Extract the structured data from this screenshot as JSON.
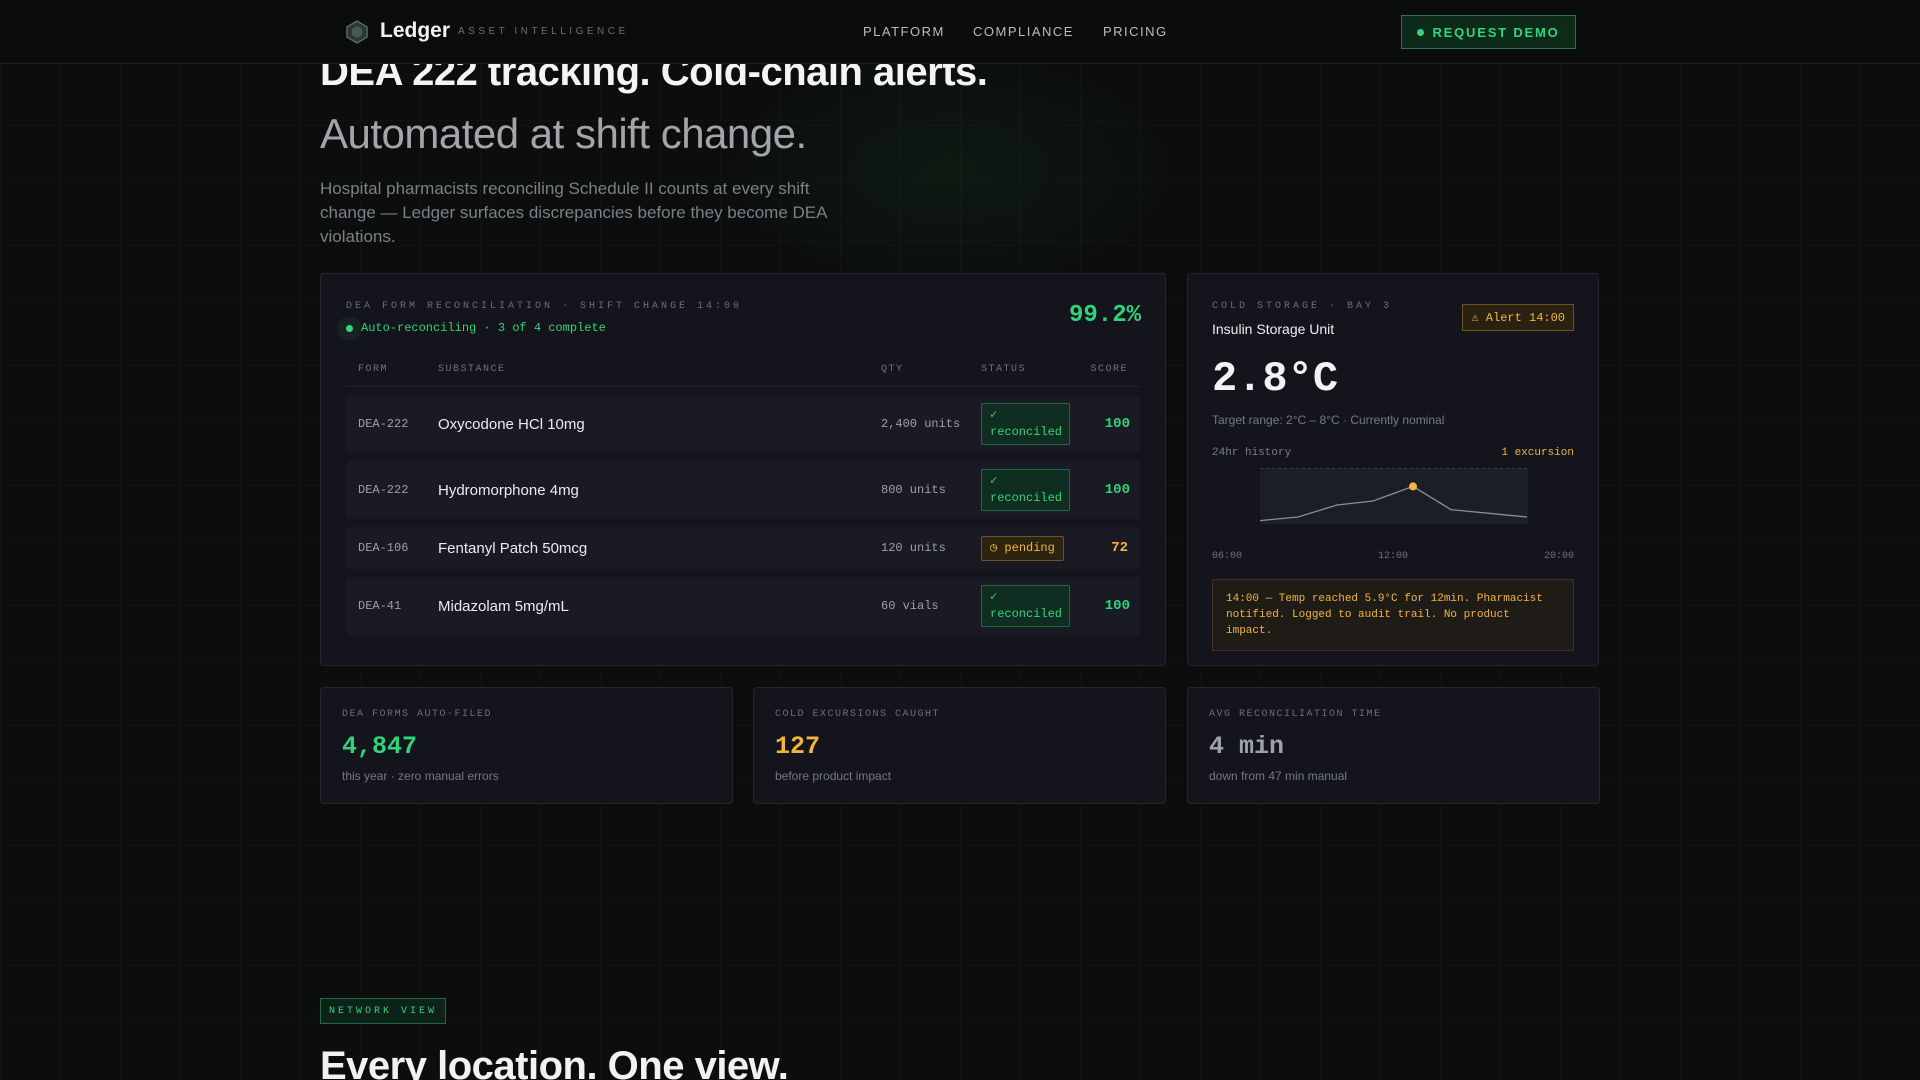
{
  "nav": {
    "brand": "Ledger",
    "tagline": "ASSET INTELLIGENCE",
    "links": [
      "PLATFORM",
      "COMPLIANCE",
      "PRICING"
    ],
    "cta": "REQUEST DEMO"
  },
  "hero": {
    "headline": "DEA 222 tracking. Cold-chain alerts.",
    "subheadline": "Automated at shift change.",
    "description": "Hospital pharmacists reconciling Schedule II counts at every shift change — Ledger surfaces discrepancies before they become DEA violations."
  },
  "reconciliation": {
    "label": "DEA FORM RECONCILIATION · SHIFT CHANGE 14:00",
    "status": "Auto-reconciling · 3 of 4 complete",
    "percent": "99.2%",
    "columns": [
      "FORM",
      "SUBSTANCE",
      "QTY",
      "STATUS",
      "SCORE"
    ],
    "rows": [
      [
        "DEA-222",
        "Oxycodone HCl 10mg",
        "2,400 units",
        "✓ reconciled",
        "100"
      ],
      [
        "DEA-222",
        "Hydromorphone 4mg",
        "800 units",
        "✓ reconciled",
        "100"
      ],
      [
        "DEA-106",
        "Fentanyl Patch 50mcg",
        "120 units",
        "◷ pending",
        "72"
      ],
      [
        "DEA-41",
        "Midazolam 5mg/mL",
        "60 vials",
        "✓ reconciled",
        "100"
      ]
    ]
  },
  "cold_storage": {
    "label": "COLD STORAGE · BAY 3",
    "unit": "Insulin Storage Unit",
    "alert": "⚠ Alert 14:00",
    "temperature": "2.8°C",
    "range": "Target range: 2°C – 8°C · Currently nominal",
    "history_label": "24hr history",
    "excursions": "1 excursion",
    "axis_labels": [
      "06:00",
      "12:00",
      "20:00"
    ],
    "note": "14:00 — Temp reached 5.9°C for 12min. Pharmacist notified. Logged to audit trail. No product impact."
  },
  "stats": [
    {
      "label": "DEA FORMS AUTO-FILED",
      "value": "4,847",
      "note": "this year · zero manual errors"
    },
    {
      "label": "COLD EXCURSIONS CAUGHT",
      "value": "127",
      "note": "before product impact"
    },
    {
      "label": "AVG RECONCILIATION TIME",
      "value": "4 min",
      "note": "down from 47 min manual"
    }
  ],
  "network": {
    "tag": "NETWORK VIEW",
    "heading": "Every location. One view."
  }
}
